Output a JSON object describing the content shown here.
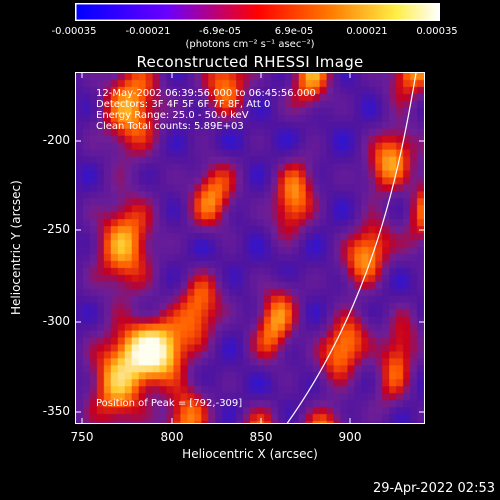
{
  "colorbar": {
    "ticks": [
      "-0.00035",
      "-0.00021",
      "-6.9e-05",
      "6.9e-05",
      "0.00021",
      "0.00035"
    ],
    "units": "(photons cm⁻² s⁻¹ asec⁻²)",
    "colors": [
      "#0000ff",
      "#7a00ff",
      "#ff0000",
      "#ff8c00",
      "#ffff66",
      "#ffffff"
    ]
  },
  "title": "Reconstructed RHESSI Image",
  "info": {
    "line1": "12-May-2002 06:39:56.000 to 06:45:56.000",
    "line2": "Detectors: 3F 4F 5F 6F 7F 8F, Att 0",
    "line3": "Energy Range: 25.0 - 50.0 keV",
    "line4": "Clean     Total counts: 5.89E+03",
    "peak": "Position of Peak = [792,-309]"
  },
  "axes": {
    "xlabel": "Heliocentric X (arcsec)",
    "ylabel": "Heliocentric Y (arcsec)",
    "xticks": [
      "750",
      "800",
      "850",
      "900"
    ],
    "yticks": [
      "-200",
      "-250",
      "-300",
      "-350"
    ]
  },
  "timestamp": "29-Apr-2022 02:53"
}
